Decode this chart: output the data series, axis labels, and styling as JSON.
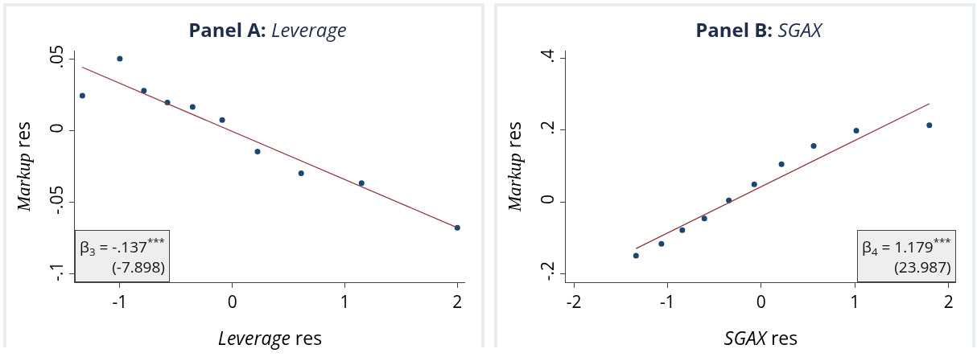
{
  "chart_data": [
    {
      "type": "scatter",
      "title": "Panel A: Leverage",
      "xlabel": "Leverage res",
      "ylabel": "Markup res",
      "annotations": [
        "β$_{3}$ = -.137$^{***}$",
        "(-7.898)"
      ],
      "grid": false,
      "xlim": [
        -1.4,
        2.07
      ],
      "xticks": [
        -1,
        0,
        1,
        2
      ],
      "ylim": [
        -0.1057,
        0.056
      ],
      "yticks": [
        {
          "value": -0.1,
          "label": "-.1"
        },
        {
          "value": -0.05,
          "label": "-.05"
        },
        0,
        {
          "value": 0.05,
          "label": ".05"
        }
      ],
      "series": [
        {
          "marker": "circle",
          "color": "#1a476f",
          "x": [
            -1.333,
            -1.0,
            -0.786,
            -0.577,
            -0.353,
            -0.09,
            0.224,
            0.612,
            1.149,
            2.0
          ],
          "values": [
            0.0245,
            0.0504,
            0.028,
            0.0198,
            0.0167,
            0.0076,
            -0.0145,
            -0.0296,
            -0.0365,
            -0.0676
          ]
        },
        {
          "type": "line",
          "marker": "none",
          "color": "#90353b",
          "x": [
            -1.336,
            2.0
          ],
          "values": [
            0.0445,
            -0.0676
          ]
        }
      ]
    },
    {
      "type": "scatter",
      "title": "Panel B: SGAX",
      "xlabel": "SGAX res",
      "ylabel": "Markup res",
      "annotations": [
        "β$_{4}$ = 1.179$^{***}$",
        "(23.987)"
      ],
      "grid": false,
      "xlim": [
        -2.086,
        2.08
      ],
      "xticks": [
        -2,
        -1,
        0,
        1,
        2
      ],
      "ylim": [
        -0.224,
        0.422
      ],
      "yticks": [
        {
          "value": -0.2,
          "label": "-.2"
        },
        0,
        {
          "value": 0.2,
          "label": ".2"
        },
        {
          "value": 0.4,
          "label": ".4"
        }
      ],
      "series": [
        {
          "marker": "circle",
          "color": "#1a476f",
          "x": [
            -1.336,
            -1.065,
            -0.842,
            -0.607,
            -0.345,
            -0.074,
            0.217,
            0.56,
            1.015,
            1.795
          ],
          "values": [
            -0.15,
            -0.117,
            -0.079,
            -0.046,
            0.004,
            0.049,
            0.105,
            0.156,
            0.199,
            0.214
          ]
        },
        {
          "type": "line",
          "marker": "none",
          "color": "#90353b",
          "x": [
            -1.336,
            1.795
          ],
          "values": [
            -0.13,
            0.274
          ]
        }
      ]
    }
  ]
}
